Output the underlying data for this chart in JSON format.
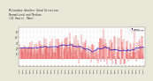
{
  "title": "Milwaukee Weather Wind Direction\nNormalized and Median\n(24 Hours) (New)",
  "title_fontsize": 2.2,
  "background_color": "#e8e8d8",
  "plot_bg_color": "#ffffff",
  "bar_color": "#dd0000",
  "median_color": "#0000bb",
  "ylim": [
    -1.2,
    5.8
  ],
  "yticks": [
    1,
    2,
    3,
    4,
    5
  ],
  "ytick_labels": [
    "1",
    "2",
    "3",
    "4",
    "5"
  ],
  "legend_labels": [
    "Median",
    "Normalized"
  ],
  "legend_colors": [
    "#0000cc",
    "#cc0000"
  ],
  "n_points": 240,
  "seed": 7
}
